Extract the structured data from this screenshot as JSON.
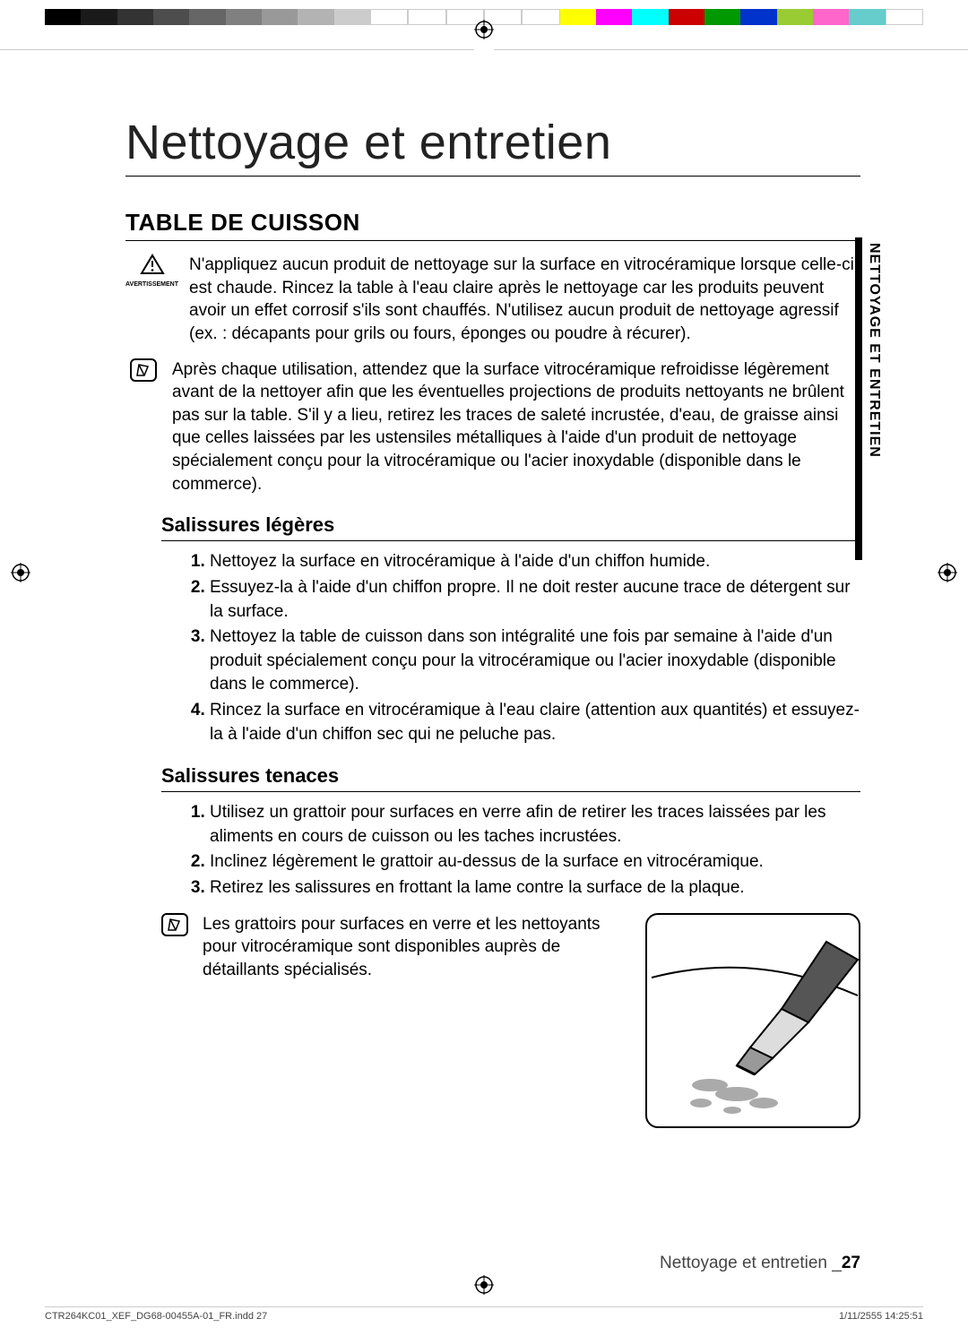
{
  "colorbar": [
    "#000000",
    "#1a1a1a",
    "#333333",
    "#4d4d4d",
    "#666666",
    "#808080",
    "#999999",
    "#b3b3b3",
    "#cccccc",
    "#ffffff",
    "#ffffff",
    "#ffffff",
    "#ffffff",
    "#ffffff",
    "#ffff00",
    "#ff00ff",
    "#00ffff",
    "#cc0000",
    "#009900",
    "#0033cc",
    "#99cc33",
    "#ff66cc",
    "#66cccc",
    "#ffffff"
  ],
  "title": "Nettoyage et entretien",
  "section": "TABLE DE CUISSON",
  "warning_label": "AVERTISSEMENT",
  "warning_text": "N'appliquez aucun produit de nettoyage sur la surface en vitrocéramique lorsque celle-ci est chaude. Rincez la table à l'eau claire après le nettoyage car les produits peuvent avoir un effet corrosif s'ils sont chauffés. N'utilisez aucun produit de nettoyage agressif (ex. : décapants pour grils ou fours, éponges ou poudre à récurer).",
  "note1_text": "Après chaque utilisation, attendez que la surface vitrocéramique refroidisse légèrement avant de la nettoyer afin que les éventuelles projections de produits nettoyants ne brûlent pas sur la table. S'il y a lieu, retirez les traces de saleté incrustée, d'eau, de graisse ainsi que celles laissées par les ustensiles métalliques à l'aide d'un produit de nettoyage spécialement conçu pour la vitrocéramique ou l'acier inoxydable (disponible dans le commerce).",
  "sub1": "Salissures légères",
  "list1": [
    "Nettoyez la surface en vitrocéramique à l'aide d'un chiffon humide.",
    "Essuyez-la à l'aide d'un chiffon propre. Il ne doit rester aucune trace de détergent sur la surface.",
    "Nettoyez la table de cuisson dans son intégralité une fois par semaine à l'aide d'un produit spécialement conçu pour la vitrocéramique ou l'acier inoxydable (disponible dans le commerce).",
    "Rincez la surface en vitrocéramique à l'eau claire (attention aux quantités) et essuyez-la à l'aide d'un chiffon sec qui ne peluche pas."
  ],
  "sub2": "Salissures tenaces",
  "list2": [
    "Utilisez un grattoir pour surfaces en verre afin de retirer les traces laissées par les aliments en cours de cuisson ou les taches incrustées.",
    "Inclinez légèrement le grattoir au-dessus de la surface en vitrocéramique.",
    "Retirez les salissures en frottant la lame contre la surface de la plaque."
  ],
  "note2_text": "Les grattoirs pour surfaces en verre et les nettoyants pour vitrocéramique sont disponibles auprès de détaillants spécialisés.",
  "side_tab": "NETTOYAGE ET ENTRETIEN",
  "footer": {
    "label": "Nettoyage et entretien _",
    "page": "27"
  },
  "printfoot": {
    "file": "CTR264KC01_XEF_DG68-00455A-01_FR.indd   27",
    "stamp": "1/11/2555   14:25:51"
  }
}
